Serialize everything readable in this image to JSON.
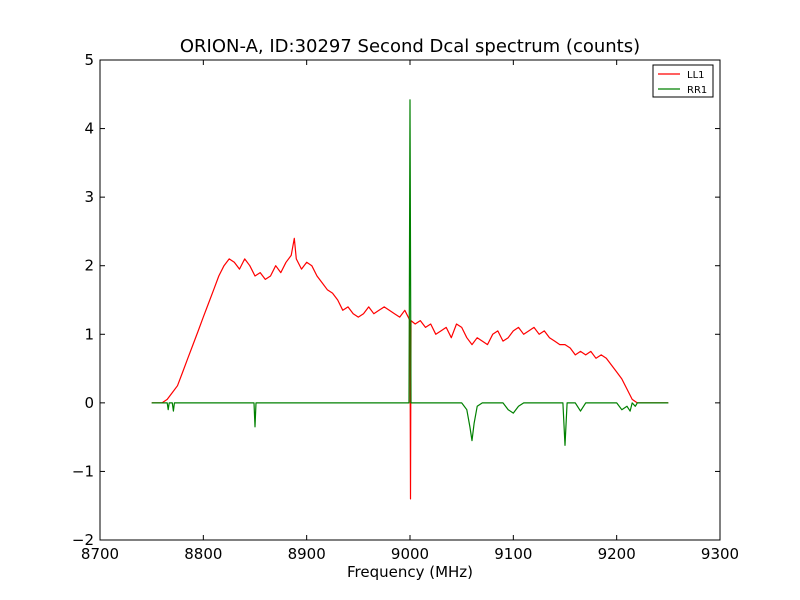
{
  "chart_data": {
    "type": "line",
    "title": "ORION-A, ID:30297 Second Dcal spectrum (counts)",
    "xlabel": "Frequency (MHz)",
    "ylabel": "",
    "xlim": [
      8700,
      9300
    ],
    "ylim": [
      -2,
      5
    ],
    "xticks": [
      8700,
      8800,
      8900,
      9000,
      9100,
      9200,
      9300
    ],
    "yticks": [
      -2,
      -1,
      0,
      1,
      2,
      3,
      4,
      5
    ],
    "grid": false,
    "legend_position": "top-right",
    "series": [
      {
        "name": "LL1",
        "color": "#ff0000",
        "x": [
          8750,
          8760,
          8765,
          8770,
          8775,
          8780,
          8785,
          8790,
          8795,
          8800,
          8805,
          8810,
          8815,
          8820,
          8825,
          8830,
          8835,
          8840,
          8845,
          8850,
          8855,
          8860,
          8865,
          8870,
          8875,
          8880,
          8885,
          8888,
          8890,
          8895,
          8900,
          8905,
          8910,
          8915,
          8920,
          8925,
          8930,
          8935,
          8940,
          8945,
          8950,
          8955,
          8960,
          8965,
          8970,
          8975,
          8980,
          8985,
          8990,
          8995,
          9000,
          9000.5,
          9001,
          9005,
          9010,
          9015,
          9020,
          9025,
          9030,
          9035,
          9040,
          9045,
          9050,
          9055,
          9060,
          9065,
          9070,
          9075,
          9080,
          9085,
          9090,
          9095,
          9100,
          9105,
          9110,
          9115,
          9120,
          9125,
          9130,
          9135,
          9140,
          9145,
          9150,
          9155,
          9160,
          9165,
          9170,
          9175,
          9180,
          9185,
          9190,
          9195,
          9200,
          9205,
          9210,
          9215,
          9220,
          9230,
          9240,
          9250
        ],
        "y": [
          0.0,
          0.0,
          0.05,
          0.15,
          0.25,
          0.45,
          0.65,
          0.85,
          1.05,
          1.25,
          1.45,
          1.65,
          1.85,
          2.0,
          2.1,
          2.05,
          1.95,
          2.1,
          2.0,
          1.85,
          1.9,
          1.8,
          1.85,
          2.0,
          1.9,
          2.05,
          2.15,
          2.4,
          2.1,
          1.95,
          2.05,
          2.0,
          1.85,
          1.75,
          1.65,
          1.6,
          1.5,
          1.35,
          1.4,
          1.3,
          1.25,
          1.3,
          1.4,
          1.3,
          1.35,
          1.4,
          1.35,
          1.3,
          1.25,
          1.35,
          1.2,
          -1.4,
          1.2,
          1.15,
          1.2,
          1.1,
          1.15,
          1.0,
          1.05,
          1.1,
          0.95,
          1.15,
          1.1,
          0.95,
          0.85,
          0.95,
          0.9,
          0.85,
          1.0,
          1.05,
          0.9,
          0.95,
          1.05,
          1.1,
          1.0,
          1.05,
          1.1,
          1.0,
          1.05,
          0.95,
          0.9,
          0.85,
          0.85,
          0.8,
          0.7,
          0.75,
          0.7,
          0.75,
          0.65,
          0.7,
          0.65,
          0.55,
          0.45,
          0.35,
          0.2,
          0.05,
          0.0,
          0.0,
          0.0,
          0.0
        ]
      },
      {
        "name": "RR1",
        "color": "#008000",
        "x": [
          8750,
          8765,
          8766,
          8767,
          8770,
          8771,
          8772,
          8800,
          8849,
          8850,
          8851,
          8900,
          8999,
          9000,
          9001,
          9002,
          9003,
          9050,
          9055,
          9058,
          9060,
          9062,
          9065,
          9070,
          9090,
          9095,
          9100,
          9105,
          9110,
          9148,
          9150,
          9152,
          9160,
          9165,
          9170,
          9200,
          9205,
          9210,
          9213,
          9215,
          9218,
          9220,
          9250
        ],
        "y": [
          0.0,
          0.0,
          -0.1,
          0.0,
          0.0,
          -0.12,
          0.0,
          0.0,
          0.0,
          -0.35,
          0.0,
          0.0,
          0.0,
          4.42,
          0.0,
          0.0,
          0.0,
          0.0,
          -0.1,
          -0.35,
          -0.55,
          -0.3,
          -0.05,
          0.0,
          0.0,
          -0.1,
          -0.15,
          -0.05,
          0.0,
          0.0,
          -0.62,
          0.0,
          0.0,
          -0.12,
          0.0,
          0.0,
          -0.1,
          -0.05,
          -0.12,
          0.0,
          -0.05,
          0.0,
          0.0
        ]
      }
    ]
  }
}
